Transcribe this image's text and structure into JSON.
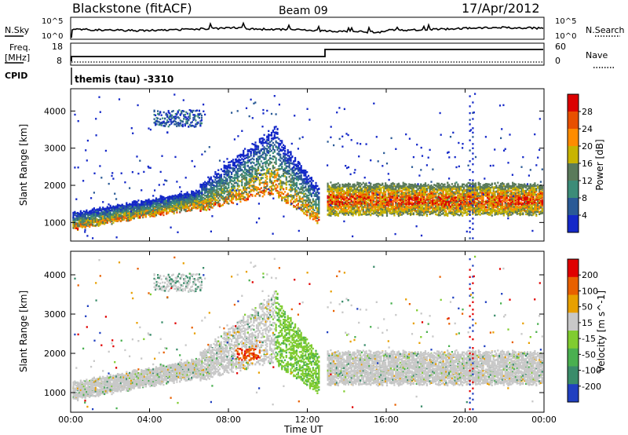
{
  "header": {
    "station": "Blackstone (fitACF)",
    "beam": "Beam 09",
    "date": "17/Apr/2012"
  },
  "noise_panel": {
    "left_label": "N.Sky",
    "left_ticks": [
      "10^5",
      "10^0"
    ],
    "right_label": "N.Search",
    "right_ticks": [
      "10^5",
      "10^0"
    ]
  },
  "freq_panel": {
    "left_label_1": "Freq.",
    "left_label_2": "[MHz]",
    "left_ticks": [
      "18",
      "8"
    ],
    "right_label": "Nave",
    "right_ticks": [
      "60",
      "0"
    ]
  },
  "cpid": {
    "label": "CPID",
    "mode": "themis (tau)  -3310"
  },
  "x_axis": {
    "ticks": [
      "00:00",
      "04:00",
      "08:00",
      "12:00",
      "16:00",
      "20:00",
      "00:00"
    ],
    "label": "Time UT"
  },
  "chart_data": [
    {
      "type": "heatmap",
      "name": "power",
      "ylabel": "Slant Range [km]",
      "yticks": [
        "1000",
        "2000",
        "3000",
        "4000"
      ],
      "ylim": [
        500,
        4600
      ],
      "xlim_hours": [
        0,
        24
      ],
      "colorbar_label": "Power [dB]",
      "colorbar_ticks": [
        "28",
        "24",
        "20",
        "16",
        "12",
        "8",
        "4"
      ],
      "colorscale": [
        "#1428c8",
        "#2a5a96",
        "#3c8c78",
        "#5a7a5a",
        "#c8b400",
        "#ff8c00",
        "#e85000",
        "#dc0000"
      ],
      "bands": [
        {
          "t": [
            0.0,
            6.5
          ],
          "range_km": [
            800,
            1800
          ],
          "max_db": 26
        },
        {
          "t": [
            6.5,
            10.5
          ],
          "range_km": [
            1300,
            3800
          ],
          "max_db": 22
        },
        {
          "t": [
            10.5,
            12.9
          ],
          "range_km": [
            900,
            2200
          ],
          "max_db": 28
        },
        {
          "t": [
            12.9,
            24.0
          ],
          "range_km": [
            1150,
            2100
          ],
          "max_db": 30
        }
      ]
    },
    {
      "type": "heatmap",
      "name": "velocity",
      "ylabel": "Slant Range [km]",
      "yticks": [
        "1000",
        "2000",
        "3000",
        "4000"
      ],
      "ylim": [
        500,
        4600
      ],
      "xlim_hours": [
        0,
        24
      ],
      "colorbar_label": "Velocity [m s^-1]",
      "colorbar_ticks": [
        "200",
        "100",
        "50",
        "15",
        "-15",
        "-50",
        "-100",
        "-200"
      ],
      "colorscale": [
        "#2040c0",
        "#3a8c6a",
        "#4ab050",
        "#80cc30",
        "#c8c8c8",
        "#e8a000",
        "#e86000",
        "#e00000"
      ]
    }
  ]
}
